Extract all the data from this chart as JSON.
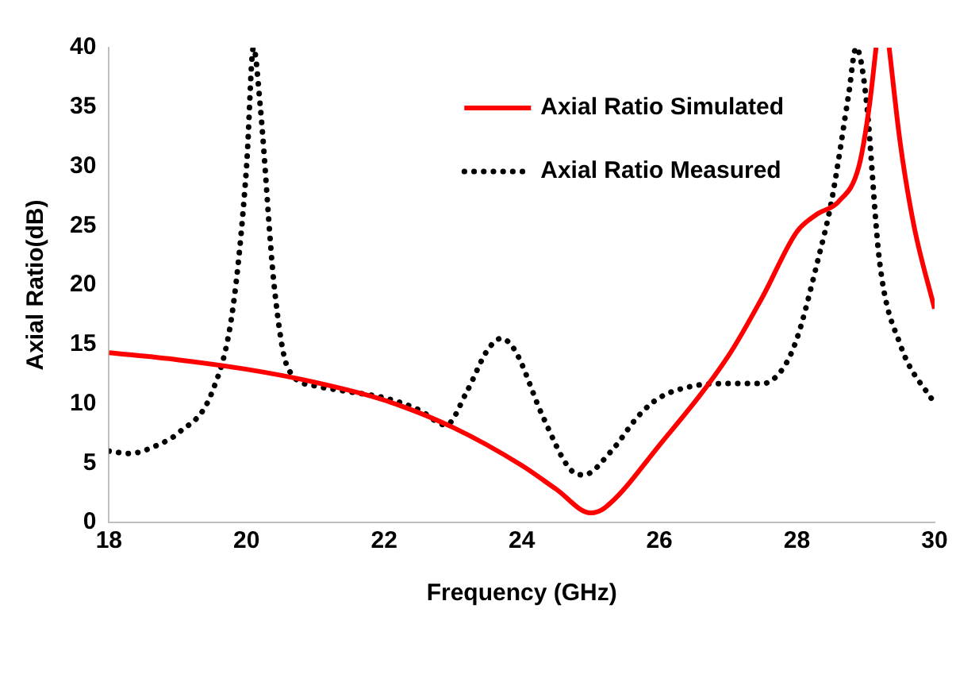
{
  "chart_data": {
    "type": "line",
    "xlabel": "Frequency (GHz)",
    "ylabel": "Axial Ratio(dB)",
    "xlim": [
      18,
      30
    ],
    "xticks": [
      18,
      20,
      22,
      24,
      26,
      28,
      30
    ],
    "ylim": [
      0,
      40
    ],
    "yticks": [
      0,
      5,
      10,
      15,
      20,
      25,
      30,
      35,
      40
    ],
    "grid": false,
    "legend": "top right",
    "marker": "none",
    "series": [
      {
        "name": "Axial Ratio Simulated",
        "color": "#ff0000",
        "line_style": "solid",
        "x": [
          18,
          19,
          20,
          21,
          22,
          23,
          24,
          24.5,
          25,
          25.2,
          26,
          27,
          27.5,
          28,
          28.3,
          28.6,
          28.9,
          29.05,
          29.15,
          29.25,
          29.34,
          29.5,
          29.7,
          30
        ],
        "values": [
          14.3,
          13.7,
          12.9,
          11.8,
          10.3,
          8,
          4.8,
          2.8,
          0.8,
          1.2,
          6.5,
          14,
          19,
          24.5,
          26,
          27,
          30,
          35,
          40,
          null,
          40,
          32,
          25,
          18
        ]
      },
      {
        "name": "Axial Ratio Measured",
        "color": "#000000",
        "line_style": "dotted",
        "x": [
          18,
          18.3,
          18.7,
          19,
          19.5,
          19.8,
          20,
          20.1,
          20.2,
          20.4,
          20.6,
          21,
          21.5,
          22,
          22.5,
          22.9,
          23.2,
          23.5,
          23.7,
          23.9,
          24.3,
          24.7,
          24.9,
          25.3,
          25.7,
          26,
          26.5,
          27,
          27.5,
          27.8,
          28,
          28.3,
          28.5,
          28.75,
          28.86,
          29,
          29.2,
          29.5,
          30
        ],
        "values": [
          6,
          5.8,
          6.5,
          7.5,
          11,
          18,
          30,
          40,
          35,
          20,
          13,
          11.5,
          11,
          10.5,
          9.5,
          8.2,
          11,
          14.5,
          15.5,
          14.5,
          9,
          4.5,
          4,
          6,
          9,
          10.5,
          11.5,
          11.7,
          11.7,
          13,
          15.5,
          22,
          27,
          36,
          40,
          36,
          22,
          15,
          10
        ]
      }
    ]
  }
}
